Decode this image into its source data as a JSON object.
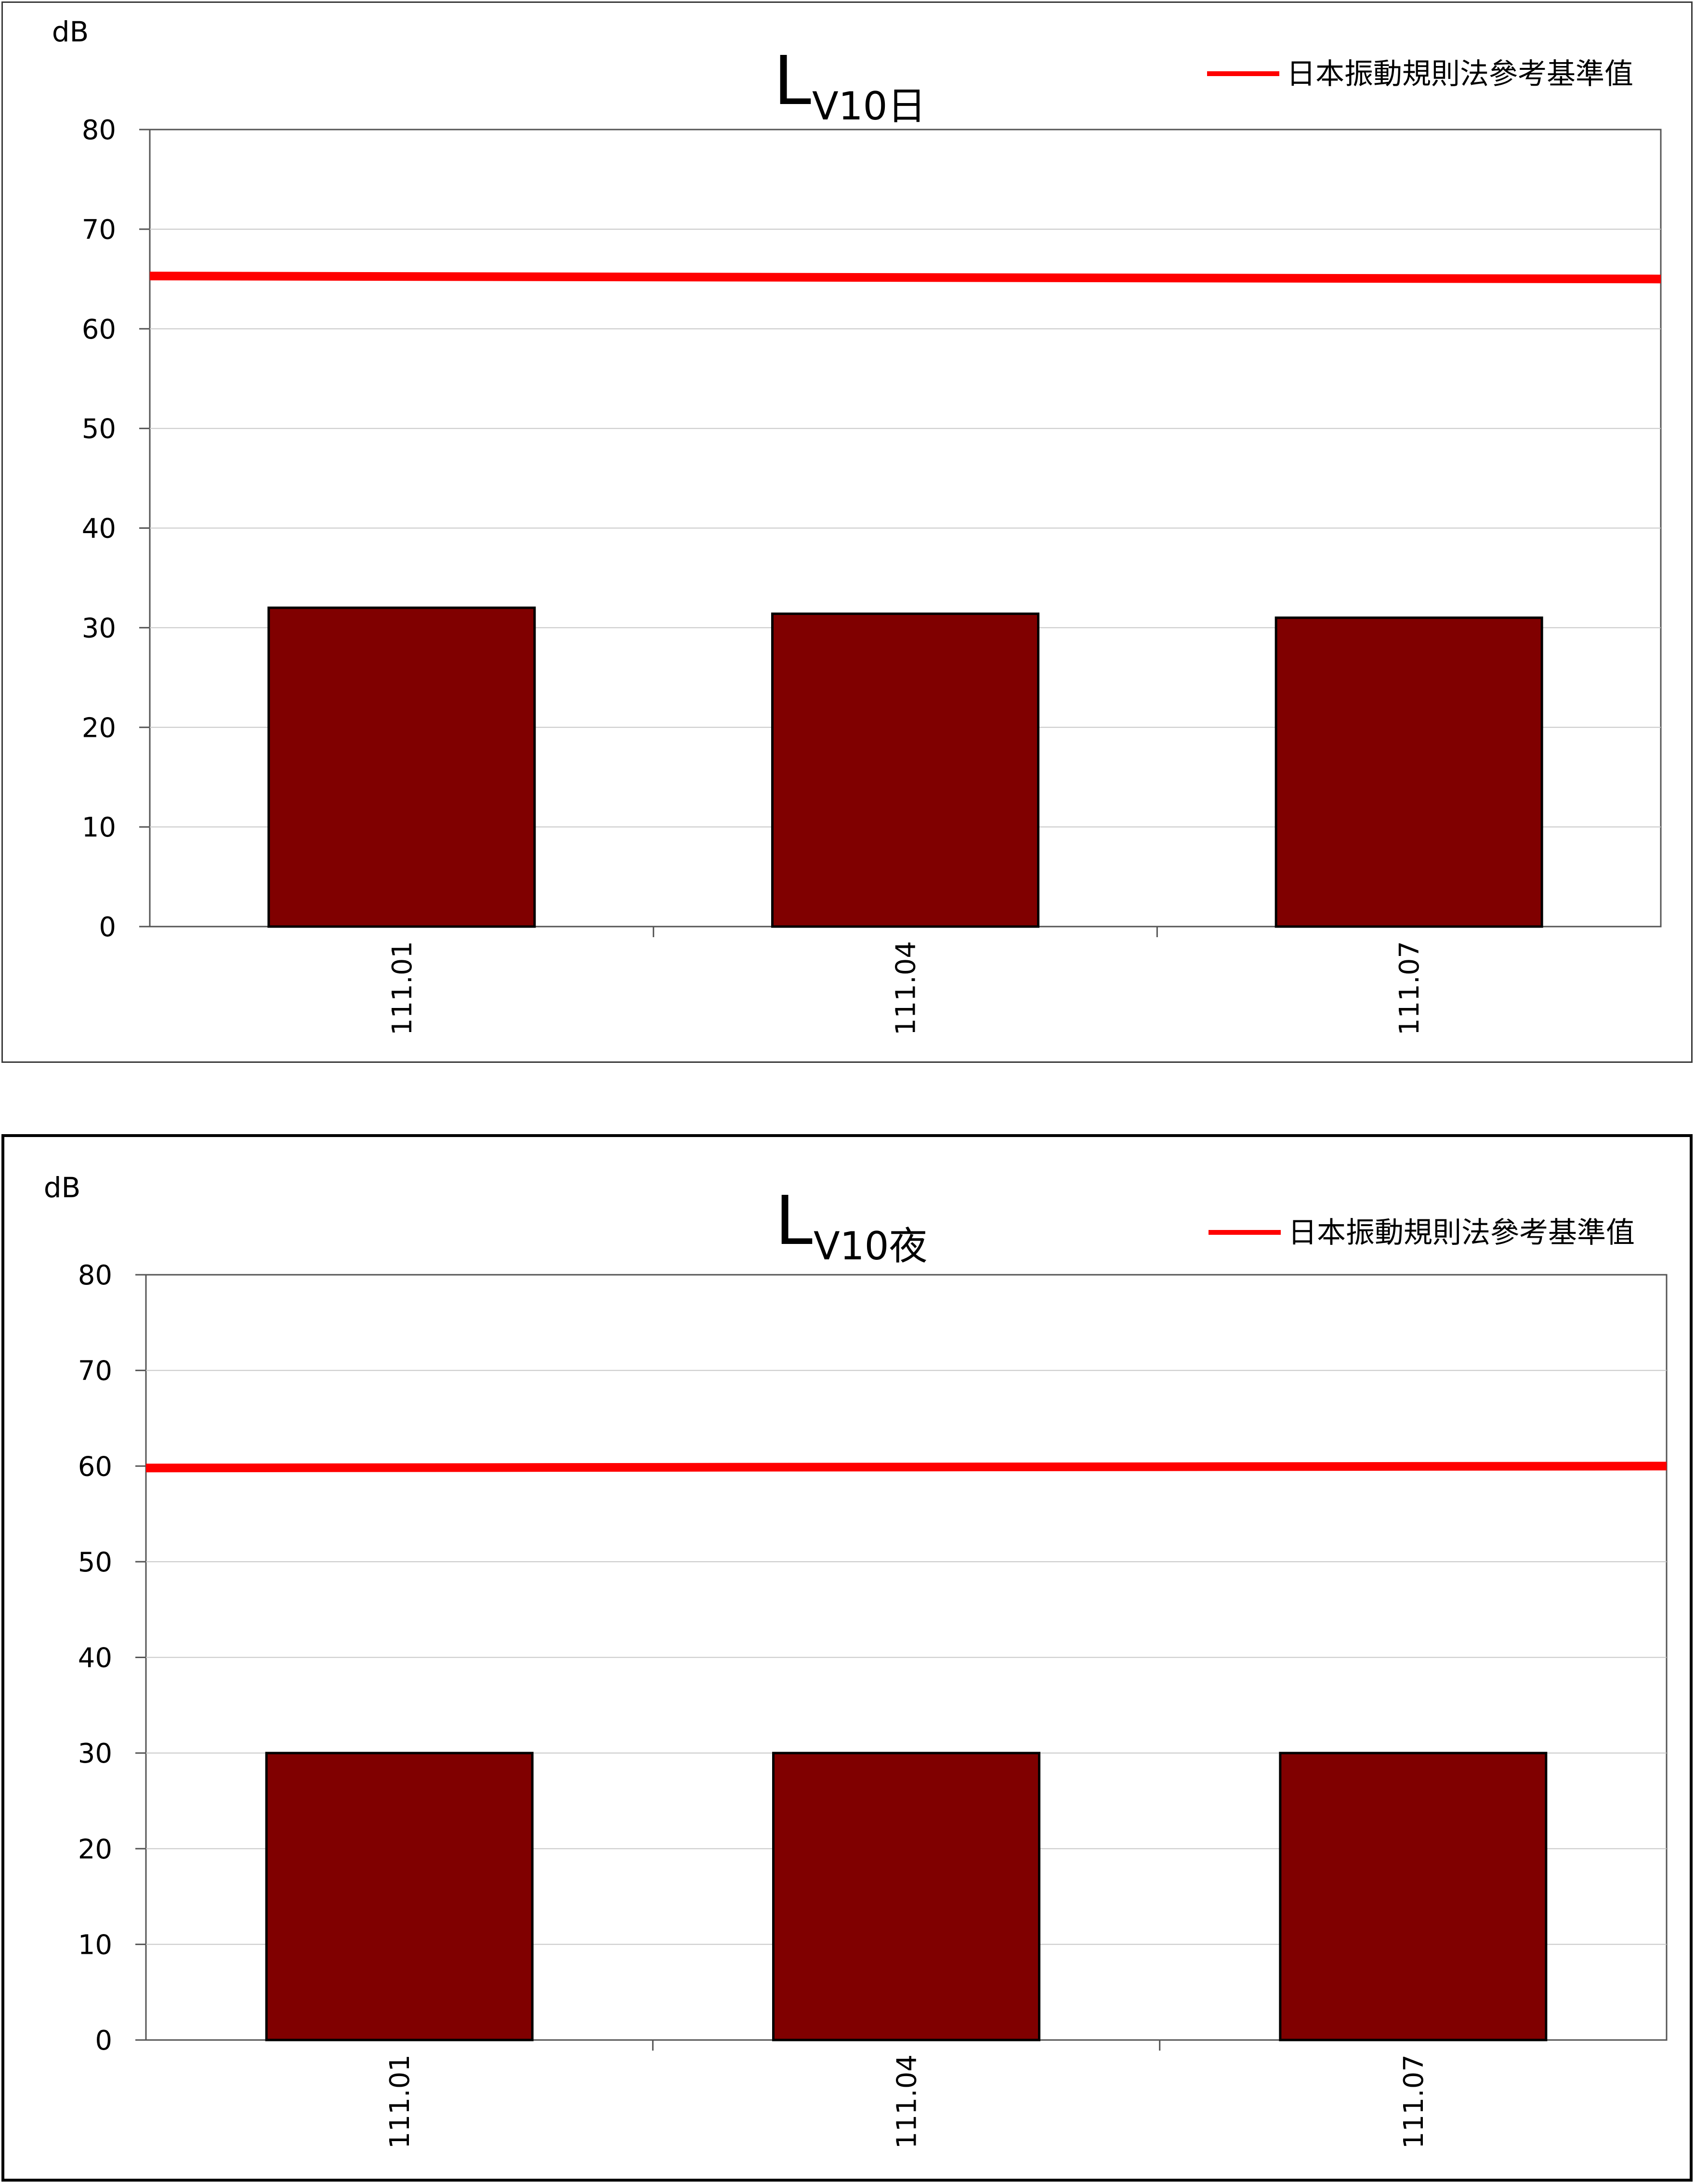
{
  "chart_data": [
    {
      "type": "bar",
      "title_main": "L",
      "title_sub": "V10日",
      "ylabel": "dB",
      "ylim": [
        0,
        80
      ],
      "yticks": [
        "0",
        "10",
        "20",
        "30",
        "40",
        "50",
        "60",
        "70",
        "80"
      ],
      "categories": [
        "111.01",
        "111.04",
        "111.07"
      ],
      "values": [
        32,
        31.4,
        31
      ],
      "grid": true,
      "legend": "top-right",
      "reference_line": {
        "name": "日本振動規則法參考基準值",
        "start": 65.3,
        "end": 65.0,
        "color": "#ff0000"
      },
      "bar_color": "#800000"
    },
    {
      "type": "bar",
      "title_main": "L",
      "title_sub": "V10夜",
      "ylabel": "dB",
      "ylim": [
        0,
        80
      ],
      "yticks": [
        "0",
        "10",
        "20",
        "30",
        "40",
        "50",
        "60",
        "70",
        "80"
      ],
      "categories": [
        "111.01",
        "111.04",
        "111.07"
      ],
      "values": [
        30,
        30,
        30
      ],
      "grid": true,
      "legend": "top-right",
      "reference_line": {
        "name": "日本振動規則法參考基準值",
        "start": 59.8,
        "end": 60.0,
        "color": "#ff0000"
      },
      "bar_color": "#800000"
    }
  ]
}
